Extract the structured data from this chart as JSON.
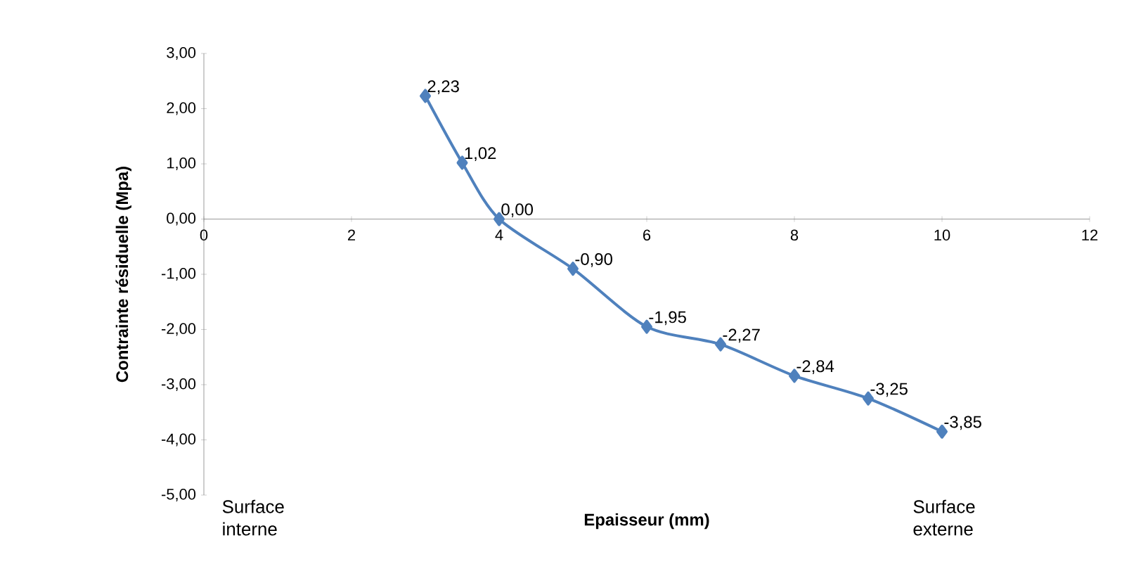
{
  "chart_data": {
    "type": "line",
    "xlabel": "Epaisseur (mm)",
    "ylabel": "Contrainte résiduelle (Mpa)",
    "x": [
      3,
      3.5,
      4,
      5,
      6,
      7,
      8,
      9,
      10
    ],
    "values": [
      2.23,
      1.02,
      0.0,
      -0.9,
      -1.95,
      -2.27,
      -2.84,
      -3.25,
      -3.85
    ],
    "value_labels": [
      "2,23",
      "1,02",
      "0,00",
      "-0,90",
      "-1,95",
      "-2,27",
      "-2,84",
      "-3,25",
      "-3,85"
    ],
    "color": "#4f81bd",
    "marker": "diamond",
    "xlim": [
      0,
      12
    ],
    "xticks": [
      0,
      2,
      4,
      6,
      8,
      10,
      12
    ],
    "ylim": [
      -5,
      3
    ],
    "yticks": [
      {
        "value": -5,
        "label": "-5,00"
      },
      {
        "value": -4,
        "label": "-4,00"
      },
      {
        "value": -3,
        "label": "-3,00"
      },
      {
        "value": -2,
        "label": "-2,00"
      },
      {
        "value": -1,
        "label": "-1,00"
      },
      {
        "value": 0,
        "label": "0,00"
      },
      {
        "value": 1,
        "label": "1,00"
      },
      {
        "value": 2,
        "label": "2,00"
      },
      {
        "value": 3,
        "label": "3,00"
      }
    ],
    "annotations": [
      "Surface interne",
      "Surface externe"
    ]
  }
}
